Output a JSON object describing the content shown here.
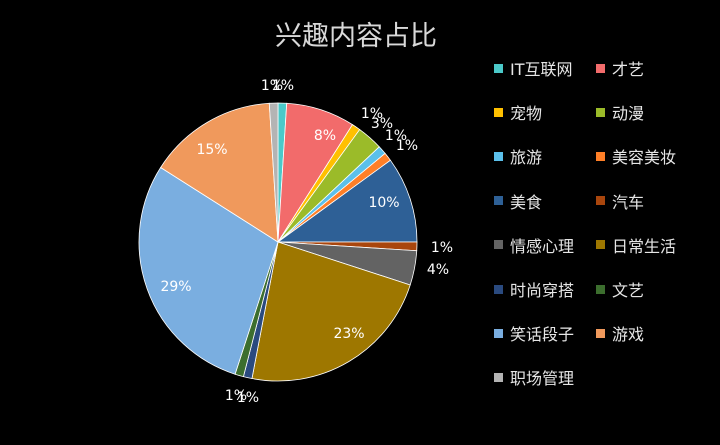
{
  "chart_data": {
    "type": "pie",
    "title": "兴趣内容占比",
    "legend_position": "right",
    "slices": [
      {
        "label": "IT互联网",
        "value": 1,
        "color": "#4bc9c9"
      },
      {
        "label": "才艺",
        "value": 8,
        "color": "#f26b6b"
      },
      {
        "label": "宠物",
        "value": 1,
        "color": "#ffc000"
      },
      {
        "label": "动漫",
        "value": 3,
        "color": "#9bbb29"
      },
      {
        "label": "旅游",
        "value": 1,
        "color": "#5bc0eb"
      },
      {
        "label": "美容美妆",
        "value": 1,
        "color": "#ff7f27"
      },
      {
        "label": "美食",
        "value": 10,
        "color": "#2e6096"
      },
      {
        "label": "汽车",
        "value": 1,
        "color": "#a9460d"
      },
      {
        "label": "情感心理",
        "value": 4,
        "color": "#636363"
      },
      {
        "label": "日常生活",
        "value": 23,
        "color": "#9e7700"
      },
      {
        "label": "时尚穿搭",
        "value": 1,
        "color": "#2a4a7f"
      },
      {
        "label": "文艺",
        "value": 1,
        "color": "#3c6e2e"
      },
      {
        "label": "笑话段子",
        "value": 29,
        "color": "#7aaee0"
      },
      {
        "label": "游戏",
        "value": 15,
        "color": "#f0995c"
      },
      {
        "label": "职场管理",
        "value": 1,
        "color": "#b4b4b4"
      }
    ],
    "data_labels": [
      "1%",
      "8%",
      "1%",
      "3%",
      "1%",
      "1%",
      "10%",
      "1%",
      "4%",
      "23%",
      "1%",
      "1%",
      "29%",
      "15%",
      "1%"
    ]
  }
}
